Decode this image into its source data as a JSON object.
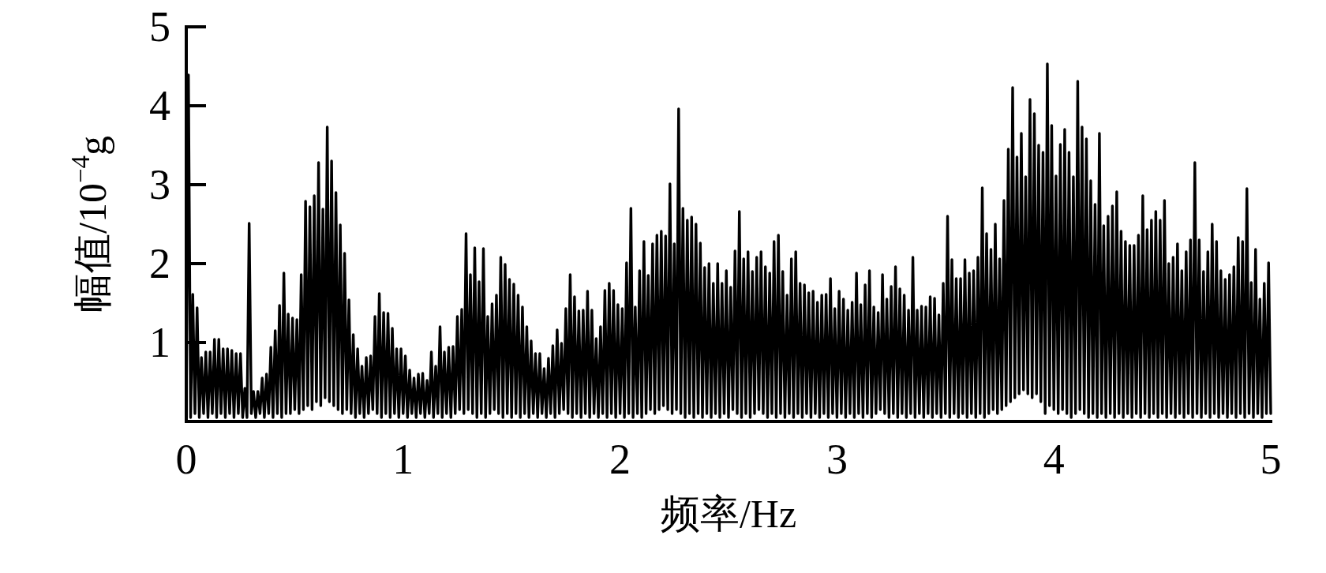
{
  "chart_data": {
    "type": "line",
    "xlabel": "频率/Hz",
    "ylabel": "幅值/10$^{−4}$g",
    "xlim": [
      0,
      5
    ],
    "ylim": [
      0,
      5
    ],
    "xticks": [
      0,
      1,
      2,
      3,
      4,
      5
    ],
    "yticks": [
      1,
      2,
      3,
      4,
      5
    ],
    "line_style": "solid",
    "x": [
      0,
      0.01,
      0.02,
      0.03,
      0.04,
      0.05,
      0.06,
      0.07,
      0.08,
      0.09,
      0.1,
      0.11,
      0.12,
      0.13,
      0.14,
      0.15,
      0.16,
      0.17,
      0.18,
      0.19,
      0.2,
      0.21,
      0.22,
      0.23,
      0.24,
      0.25,
      0.26,
      0.27,
      0.28,
      0.29,
      0.3,
      0.31,
      0.32,
      0.33,
      0.34,
      0.35,
      0.36,
      0.37,
      0.38,
      0.39,
      0.4,
      0.41,
      0.42,
      0.43,
      0.44,
      0.45,
      0.46,
      0.47,
      0.48,
      0.49,
      0.5,
      0.51,
      0.52,
      0.53,
      0.54,
      0.55,
      0.56,
      0.57,
      0.58,
      0.59,
      0.6,
      0.61,
      0.62,
      0.63,
      0.64,
      0.65,
      0.66,
      0.67,
      0.68,
      0.69,
      0.7,
      0.71,
      0.72,
      0.73,
      0.74,
      0.75,
      0.76,
      0.77,
      0.78,
      0.79,
      0.8,
      0.81,
      0.82,
      0.83,
      0.84,
      0.85,
      0.86,
      0.87,
      0.88,
      0.89,
      0.9,
      0.91,
      0.92,
      0.93,
      0.94,
      0.95,
      0.96,
      0.97,
      0.98,
      0.99,
      1,
      1.01,
      1.02,
      1.03,
      1.04,
      1.05,
      1.06,
      1.07,
      1.08,
      1.09,
      1.1,
      1.11,
      1.12,
      1.13,
      1.14,
      1.15,
      1.16,
      1.17,
      1.18,
      1.19,
      1.2,
      1.21,
      1.22,
      1.23,
      1.24,
      1.25,
      1.26,
      1.27,
      1.28,
      1.29,
      1.3,
      1.31,
      1.32,
      1.33,
      1.34,
      1.35,
      1.36,
      1.37,
      1.38,
      1.39,
      1.4,
      1.41,
      1.42,
      1.43,
      1.44,
      1.45,
      1.46,
      1.47,
      1.48,
      1.49,
      1.5,
      1.51,
      1.52,
      1.53,
      1.54,
      1.55,
      1.56,
      1.57,
      1.58,
      1.59,
      1.6,
      1.61,
      1.62,
      1.63,
      1.64,
      1.65,
      1.66,
      1.67,
      1.68,
      1.69,
      1.7,
      1.71,
      1.72,
      1.73,
      1.74,
      1.75,
      1.76,
      1.77,
      1.78,
      1.79,
      1.8,
      1.81,
      1.82,
      1.83,
      1.84,
      1.85,
      1.86,
      1.87,
      1.88,
      1.89,
      1.9,
      1.91,
      1.92,
      1.93,
      1.94,
      1.95,
      1.96,
      1.97,
      1.98,
      1.99,
      2,
      2.01,
      2.02,
      2.03,
      2.04,
      2.05,
      2.06,
      2.07,
      2.08,
      2.09,
      2.1,
      2.11,
      2.12,
      2.13,
      2.14,
      2.15,
      2.16,
      2.17,
      2.18,
      2.19,
      2.2,
      2.21,
      2.22,
      2.23,
      2.24,
      2.25,
      2.26,
      2.27,
      2.28,
      2.29,
      2.3,
      2.31,
      2.32,
      2.33,
      2.34,
      2.35,
      2.36,
      2.37,
      2.38,
      2.39,
      2.4,
      2.41,
      2.42,
      2.43,
      2.44,
      2.45,
      2.46,
      2.47,
      2.48,
      2.49,
      2.5,
      2.51,
      2.52,
      2.53,
      2.54,
      2.55,
      2.56,
      2.57,
      2.58,
      2.59,
      2.6,
      2.61,
      2.62,
      2.63,
      2.64,
      2.65,
      2.66,
      2.67,
      2.68,
      2.69,
      2.7,
      2.71,
      2.72,
      2.73,
      2.74,
      2.75,
      2.76,
      2.77,
      2.78,
      2.79,
      2.8,
      2.81,
      2.82,
      2.83,
      2.84,
      2.85,
      2.86,
      2.87,
      2.88,
      2.89,
      2.9,
      2.91,
      2.92,
      2.93,
      2.94,
      2.95,
      2.96,
      2.97,
      2.98,
      2.99,
      3,
      3.01,
      3.02,
      3.03,
      3.04,
      3.05,
      3.06,
      3.07,
      3.08,
      3.09,
      3.1,
      3.11,
      3.12,
      3.13,
      3.14,
      3.15,
      3.16,
      3.17,
      3.18,
      3.19,
      3.2,
      3.21,
      3.22,
      3.23,
      3.24,
      3.25,
      3.26,
      3.27,
      3.28,
      3.29,
      3.3,
      3.31,
      3.32,
      3.33,
      3.34,
      3.35,
      3.36,
      3.37,
      3.38,
      3.39,
      3.4,
      3.41,
      3.42,
      3.43,
      3.44,
      3.45,
      3.46,
      3.47,
      3.48,
      3.49,
      3.5,
      3.51,
      3.52,
      3.53,
      3.54,
      3.55,
      3.56,
      3.57,
      3.58,
      3.59,
      3.6,
      3.61,
      3.62,
      3.63,
      3.64,
      3.65,
      3.66,
      3.67,
      3.68,
      3.69,
      3.7,
      3.71,
      3.72,
      3.73,
      3.74,
      3.75,
      3.76,
      3.77,
      3.78,
      3.79,
      3.8,
      3.81,
      3.82,
      3.83,
      3.84,
      3.85,
      3.86,
      3.87,
      3.88,
      3.89,
      3.9,
      3.91,
      3.92,
      3.93,
      3.94,
      3.95,
      3.96,
      3.97,
      3.98,
      3.99,
      4,
      4.01,
      4.02,
      4.03,
      4.04,
      4.05,
      4.06,
      4.07,
      4.08,
      4.09,
      4.1,
      4.11,
      4.12,
      4.13,
      4.14,
      4.15,
      4.16,
      4.17,
      4.18,
      4.19,
      4.2,
      4.21,
      4.22,
      4.23,
      4.24,
      4.25,
      4.26,
      4.27,
      4.28,
      4.29,
      4.3,
      4.31,
      4.32,
      4.33,
      4.34,
      4.35,
      4.36,
      4.37,
      4.38,
      4.39,
      4.4,
      4.41,
      4.42,
      4.43,
      4.44,
      4.45,
      4.46,
      4.47,
      4.48,
      4.49,
      4.5,
      4.51,
      4.52,
      4.53,
      4.54,
      4.55,
      4.56,
      4.57,
      4.58,
      4.59,
      4.6,
      4.61,
      4.62,
      4.63,
      4.64,
      4.65,
      4.66,
      4.67,
      4.68,
      4.69,
      4.7,
      4.71,
      4.72,
      4.73,
      4.74,
      4.75,
      4.76,
      4.77,
      4.78,
      4.79,
      4.8,
      4.81,
      4.82,
      4.83,
      4.84,
      4.85,
      4.86,
      4.87,
      4.88,
      4.89,
      4.9,
      4.91,
      4.92,
      4.93,
      4.94,
      4.95,
      4.96,
      4.97,
      4.98,
      4.99,
      5
    ],
    "series": [
      {
        "color": "#000000",
        "values": [
          0.1,
          4.39,
          0.05,
          1.61,
          0.1,
          1.44,
          0.05,
          0.81,
          0.1,
          0.88,
          0.05,
          0.88,
          0.1,
          1.04,
          0.05,
          1.04,
          0.1,
          0.92,
          0.05,
          0.92,
          0.1,
          0.9,
          0.05,
          0.86,
          0.1,
          0.86,
          0.05,
          0.42,
          0.05,
          2.51,
          0.1,
          0.38,
          0.05,
          0.38,
          0.1,
          0.55,
          0.05,
          0.6,
          0.1,
          0.94,
          0.05,
          1.15,
          0.1,
          1.47,
          0.05,
          1.88,
          0.1,
          1.36,
          0.1,
          1.31,
          0.15,
          1.29,
          0.1,
          1.86,
          0.15,
          2.79,
          0.2,
          2.72,
          0.15,
          2.86,
          0.25,
          3.28,
          0.2,
          2.69,
          0.3,
          3.73,
          0.25,
          3.3,
          0.2,
          2.9,
          0.15,
          2.49,
          0.1,
          2.13,
          0.15,
          1.54,
          0.1,
          1.1,
          0.05,
          0.92,
          0.1,
          0.7,
          0.05,
          0.81,
          0.1,
          0.83,
          0.15,
          1.33,
          0.1,
          1.62,
          0.05,
          1.38,
          0.1,
          1.37,
          0.05,
          1.18,
          0.1,
          0.92,
          0.05,
          0.92,
          0.1,
          0.83,
          0.05,
          0.65,
          0.1,
          0.55,
          0.05,
          0.6,
          0.1,
          0.61,
          0.05,
          0.52,
          0.1,
          0.88,
          0.05,
          0.7,
          0.1,
          1.2,
          0.05,
          0.88,
          0.1,
          0.94,
          0.05,
          0.95,
          0.1,
          1.33,
          0.15,
          1.42,
          0.1,
          2.38,
          0.15,
          1.86,
          0.1,
          2.2,
          0.05,
          1.77,
          0.1,
          2.19,
          0.05,
          1.33,
          0.1,
          1.49,
          0.15,
          1.6,
          0.1,
          2.08,
          0.05,
          1.99,
          0.1,
          1.8,
          0.05,
          1.74,
          0.1,
          1.6,
          0.05,
          1.45,
          0.1,
          1.2,
          0.05,
          1.02,
          0.1,
          0.86,
          0.05,
          0.86,
          0.1,
          0.67,
          0.05,
          0.8,
          0.1,
          0.96,
          0.05,
          1.16,
          0.1,
          0.99,
          0.15,
          1.43,
          0.1,
          1.86,
          0.05,
          1.58,
          0.1,
          1.4,
          0.05,
          1.41,
          0.1,
          1.65,
          0.05,
          1.41,
          0.1,
          1.05,
          0.05,
          1.2,
          0.1,
          1.66,
          0.05,
          1.75,
          0.1,
          1.66,
          0.05,
          1.48,
          0.1,
          1.43,
          0.05,
          2.01,
          0.1,
          2.7,
          0.05,
          1.45,
          0.1,
          1.91,
          0.05,
          2.28,
          0.1,
          1.85,
          0.15,
          2.25,
          0.1,
          2.36,
          0.15,
          2.41,
          0.2,
          2.35,
          0.15,
          3.01,
          0.1,
          2.25,
          0.15,
          3.96,
          0.1,
          2.7,
          0.05,
          2.55,
          0.1,
          2.59,
          0.05,
          2.5,
          0.1,
          2.26,
          0.05,
          1.95,
          0.1,
          2,
          0.05,
          1.75,
          0.1,
          2,
          0.05,
          1.75,
          0.1,
          1.91,
          0.05,
          1.7,
          0.15,
          2.16,
          0.1,
          2.66,
          0.05,
          2.06,
          0.1,
          2.15,
          0.05,
          1.9,
          0.1,
          2.08,
          0.15,
          2.15,
          0.1,
          1.96,
          0.05,
          1.88,
          0.1,
          2.28,
          0.05,
          2.36,
          0.1,
          1.9,
          0.05,
          1.6,
          0.1,
          2.06,
          0.05,
          2.15,
          0.1,
          1.75,
          0.05,
          1.73,
          0.1,
          1.63,
          0.05,
          1.65,
          0.1,
          1.51,
          0.05,
          1.6,
          0.1,
          1.61,
          0.05,
          1.81,
          0.1,
          1.43,
          0.05,
          1.65,
          0.1,
          1.55,
          0.05,
          1.41,
          0.1,
          1.51,
          0.05,
          1.88,
          0.1,
          1.48,
          0.05,
          1.73,
          0.1,
          1.91,
          0.05,
          1.45,
          0.1,
          1.38,
          0.15,
          1.86,
          0.1,
          1.55,
          0.05,
          1.71,
          0.1,
          1.96,
          0.05,
          1.68,
          0.1,
          1.6,
          0.05,
          1.41,
          0.1,
          2.08,
          0.05,
          1.41,
          0.1,
          1.46,
          0.05,
          1.45,
          0.1,
          1.58,
          0.05,
          1.56,
          0.1,
          1.35,
          0.05,
          1.75,
          0.1,
          2.6,
          0.05,
          2.05,
          0.1,
          1.81,
          0.05,
          1.81,
          0.1,
          2.05,
          0.05,
          1.88,
          0.1,
          1.91,
          0.05,
          2.08,
          0.1,
          2.96,
          0.05,
          2.38,
          0.1,
          2.18,
          0.15,
          2.5,
          0.1,
          2.06,
          0.15,
          2.8,
          0.2,
          3.45,
          0.25,
          4.23,
          0.3,
          3.35,
          0.35,
          3.65,
          0.4,
          3.1,
          0.35,
          4.08,
          0.3,
          3.9,
          0.35,
          3.5,
          0.25,
          3.41,
          0.1,
          4.53,
          0.2,
          3.75,
          0.15,
          3.11,
          0.1,
          3.51,
          0.15,
          3.7,
          0.1,
          3.41,
          0.05,
          3.1,
          0.1,
          4.31,
          0.15,
          3.73,
          0.1,
          3.58,
          0.05,
          3.05,
          0.1,
          2.75,
          0.05,
          3.65,
          0.1,
          2.48,
          0.05,
          2.6,
          0.1,
          2.73,
          0.05,
          2.91,
          0.1,
          2.41,
          0.05,
          2.28,
          0.1,
          2.23,
          0.05,
          2.23,
          0.1,
          2.36,
          0.05,
          2.86,
          0.1,
          2.43,
          0.05,
          2.55,
          0.1,
          2.66,
          0.05,
          2.55,
          0.1,
          2.8,
          0.05,
          2,
          0.1,
          2.08,
          0.05,
          2.25,
          0.1,
          1.91,
          0.05,
          2.15,
          0.1,
          2.3,
          0.05,
          3.28,
          0.1,
          2.3,
          0.05,
          1.9,
          0.1,
          2.15,
          0.05,
          2.5,
          0.1,
          2.28,
          0.05,
          1.91,
          0.1,
          1.8,
          0.05,
          1.86,
          0.1,
          1.96,
          0.05,
          2.33,
          0.1,
          2.28,
          0.05,
          2.95,
          0.1,
          1.76,
          0.05,
          2.18,
          0.1,
          1.55,
          0.05,
          1.75,
          0.1,
          2.01,
          0.1
        ]
      }
    ]
  }
}
